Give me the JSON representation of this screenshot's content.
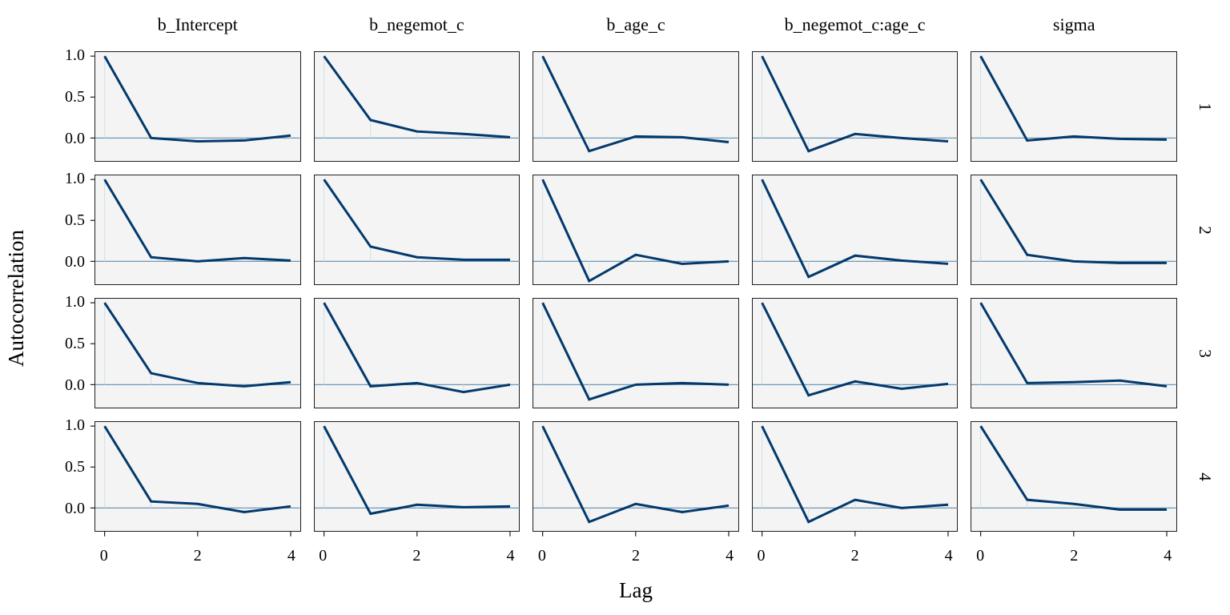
{
  "chart_data": {
    "type": "line",
    "title": "",
    "xlabel": "Lag",
    "ylabel": "Autocorrelation",
    "columns": [
      "b_Intercept",
      "b_negemot_c",
      "b_age_c",
      "b_negemot_c:age_c",
      "sigma"
    ],
    "rows": [
      "1",
      "2",
      "3",
      "4"
    ],
    "lags": [
      0,
      1,
      2,
      3,
      4
    ],
    "xlim": [
      -0.2,
      4.2
    ],
    "ylim": [
      -0.28,
      1.05
    ],
    "x_tick_values": [
      0,
      2,
      4
    ],
    "x_tick_labels": [
      "0",
      "2",
      "4"
    ],
    "y_tick_values": [
      1.0,
      0.5,
      0.0
    ],
    "y_tick_labels": [
      "1.0",
      "0.5",
      "0.0"
    ],
    "grid": false,
    "legend": "none",
    "values": [
      [
        [
          1,
          0.0,
          -0.04,
          -0.03,
          0.03
        ],
        [
          1,
          0.22,
          0.08,
          0.05,
          0.01
        ],
        [
          1,
          -0.16,
          0.02,
          0.01,
          -0.05
        ],
        [
          1,
          -0.16,
          0.05,
          0.0,
          -0.04
        ],
        [
          1,
          -0.03,
          0.02,
          -0.01,
          -0.02
        ]
      ],
      [
        [
          1,
          0.05,
          0.0,
          0.04,
          0.01
        ],
        [
          1,
          0.18,
          0.05,
          0.02,
          0.02
        ],
        [
          1,
          -0.24,
          0.08,
          -0.03,
          0.0
        ],
        [
          1,
          -0.19,
          0.07,
          0.01,
          -0.03
        ],
        [
          1,
          0.08,
          0.0,
          -0.02,
          -0.02
        ]
      ],
      [
        [
          1,
          0.14,
          0.02,
          -0.02,
          0.03
        ],
        [
          1,
          -0.02,
          0.02,
          -0.09,
          0.0
        ],
        [
          1,
          -0.18,
          0.0,
          0.02,
          0.0
        ],
        [
          1,
          -0.13,
          0.04,
          -0.05,
          0.01
        ],
        [
          1,
          0.02,
          0.03,
          0.05,
          -0.02
        ]
      ],
      [
        [
          1,
          0.08,
          0.05,
          -0.05,
          0.02
        ],
        [
          1,
          -0.07,
          0.04,
          0.01,
          0.02
        ],
        [
          1,
          -0.17,
          0.05,
          -0.05,
          0.03
        ],
        [
          1,
          -0.17,
          0.1,
          0.0,
          0.04
        ],
        [
          1,
          0.1,
          0.05,
          -0.02,
          -0.02
        ]
      ]
    ],
    "colors": {
      "line": "#03396c",
      "zero_line": "#6d98b5",
      "segment": "#cfdfeb",
      "axis": "#1f1f1f",
      "panel_bg": "#f4f4f4",
      "background": "#ffffff"
    }
  }
}
